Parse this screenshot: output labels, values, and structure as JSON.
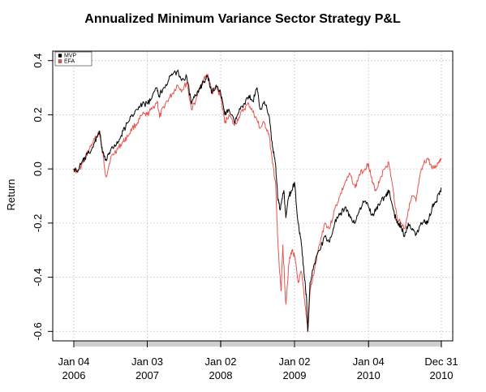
{
  "chart_data": {
    "type": "line",
    "title": "Annualized Minimum Variance Sector Strategy P&L",
    "xlabel": "",
    "ylabel": "Return",
    "ylim": [
      -0.6,
      0.4
    ],
    "xlim": [
      "2006-01-04",
      "2010-12-31"
    ],
    "y_ticks": [
      {
        "value": -0.6,
        "label": "-0.6"
      },
      {
        "value": -0.4,
        "label": "-0.4"
      },
      {
        "value": -0.2,
        "label": "-0.2"
      },
      {
        "value": 0.0,
        "label": "0.0"
      },
      {
        "value": 0.2,
        "label": "0.2"
      },
      {
        "value": 0.4,
        "label": "0.4"
      }
    ],
    "x_ticks": [
      {
        "date": "2006-01-04",
        "line1": "Jan 04",
        "line2": "2006"
      },
      {
        "date": "2007-01-03",
        "line1": "Jan 03",
        "line2": "2007"
      },
      {
        "date": "2008-01-02",
        "line1": "Jan 02",
        "line2": "2008"
      },
      {
        "date": "2009-01-02",
        "line1": "Jan 02",
        "line2": "2009"
      },
      {
        "date": "2010-01-04",
        "line1": "Jan 04",
        "line2": "2010"
      },
      {
        "date": "2010-12-31",
        "line1": "Dec 31",
        "line2": "2010"
      }
    ],
    "grid": true,
    "legend_position": "top-left",
    "series": [
      {
        "name": "MVP",
        "color": "#000000",
        "points": [
          [
            "2006-01-04",
            0.0
          ],
          [
            "2006-01-20",
            -0.01
          ],
          [
            "2006-02-10",
            0.02
          ],
          [
            "2006-03-01",
            0.04
          ],
          [
            "2006-03-20",
            0.06
          ],
          [
            "2006-04-10",
            0.08
          ],
          [
            "2006-04-28",
            0.12
          ],
          [
            "2006-05-12",
            0.14
          ],
          [
            "2006-05-26",
            0.06
          ],
          [
            "2006-06-14",
            0.03
          ],
          [
            "2006-07-05",
            0.07
          ],
          [
            "2006-07-25",
            0.09
          ],
          [
            "2006-08-15",
            0.1
          ],
          [
            "2006-09-05",
            0.14
          ],
          [
            "2006-09-28",
            0.17
          ],
          [
            "2006-10-20",
            0.2
          ],
          [
            "2006-11-15",
            0.22
          ],
          [
            "2006-12-10",
            0.24
          ],
          [
            "2007-01-03",
            0.24
          ],
          [
            "2007-01-25",
            0.26
          ],
          [
            "2007-02-20",
            0.3
          ],
          [
            "2007-03-02",
            0.27
          ],
          [
            "2007-03-25",
            0.3
          ],
          [
            "2007-04-20",
            0.33
          ],
          [
            "2007-05-10",
            0.35
          ],
          [
            "2007-06-01",
            0.36
          ],
          [
            "2007-06-25",
            0.33
          ],
          [
            "2007-07-18",
            0.34
          ],
          [
            "2007-08-10",
            0.24
          ],
          [
            "2007-08-30",
            0.27
          ],
          [
            "2007-09-20",
            0.3
          ],
          [
            "2007-10-10",
            0.32
          ],
          [
            "2007-10-30",
            0.34
          ],
          [
            "2007-11-20",
            0.28
          ],
          [
            "2007-12-10",
            0.31
          ],
          [
            "2008-01-02",
            0.28
          ],
          [
            "2008-01-22",
            0.2
          ],
          [
            "2008-02-12",
            0.22
          ],
          [
            "2008-03-10",
            0.17
          ],
          [
            "2008-04-01",
            0.21
          ],
          [
            "2008-04-25",
            0.24
          ],
          [
            "2008-05-20",
            0.27
          ],
          [
            "2008-06-10",
            0.25
          ],
          [
            "2008-06-30",
            0.3
          ],
          [
            "2008-07-15",
            0.22
          ],
          [
            "2008-08-05",
            0.25
          ],
          [
            "2008-08-28",
            0.2
          ],
          [
            "2008-09-15",
            0.08
          ],
          [
            "2008-09-30",
            0.02
          ],
          [
            "2008-10-10",
            -0.1
          ],
          [
            "2008-10-24",
            -0.15
          ],
          [
            "2008-11-10",
            -0.08
          ],
          [
            "2008-11-20",
            -0.18
          ],
          [
            "2008-12-05",
            -0.1
          ],
          [
            "2008-12-20",
            -0.08
          ],
          [
            "2009-01-02",
            -0.05
          ],
          [
            "2009-01-20",
            -0.2
          ],
          [
            "2009-02-05",
            -0.28
          ],
          [
            "2009-02-20",
            -0.4
          ],
          [
            "2009-03-03",
            -0.48
          ],
          [
            "2009-03-09",
            -0.6
          ],
          [
            "2009-03-20",
            -0.42
          ],
          [
            "2009-04-10",
            -0.35
          ],
          [
            "2009-05-05",
            -0.3
          ],
          [
            "2009-06-01",
            -0.25
          ],
          [
            "2009-06-25",
            -0.27
          ],
          [
            "2009-07-20",
            -0.2
          ],
          [
            "2009-08-15",
            -0.17
          ],
          [
            "2009-09-10",
            -0.14
          ],
          [
            "2009-10-05",
            -0.18
          ],
          [
            "2009-10-30",
            -0.2
          ],
          [
            "2009-11-20",
            -0.15
          ],
          [
            "2009-12-15",
            -0.12
          ],
          [
            "2010-01-04",
            -0.14
          ],
          [
            "2010-01-22",
            -0.17
          ],
          [
            "2010-02-10",
            -0.15
          ],
          [
            "2010-03-05",
            -0.12
          ],
          [
            "2010-03-30",
            -0.1
          ],
          [
            "2010-04-15",
            -0.08
          ],
          [
            "2010-05-06",
            -0.15
          ],
          [
            "2010-05-25",
            -0.2
          ],
          [
            "2010-06-15",
            -0.21
          ],
          [
            "2010-07-02",
            -0.25
          ],
          [
            "2010-07-20",
            -0.2
          ],
          [
            "2010-08-10",
            -0.22
          ],
          [
            "2010-08-27",
            -0.24
          ],
          [
            "2010-09-15",
            -0.21
          ],
          [
            "2010-10-05",
            -0.19
          ],
          [
            "2010-10-25",
            -0.2
          ],
          [
            "2010-11-15",
            -0.14
          ],
          [
            "2010-12-05",
            -0.12
          ],
          [
            "2010-12-20",
            -0.09
          ],
          [
            "2010-12-31",
            -0.07
          ]
        ]
      },
      {
        "name": "EFA",
        "color": "#e8544e",
        "points": [
          [
            "2006-01-04",
            0.0
          ],
          [
            "2006-01-20",
            -0.01
          ],
          [
            "2006-02-10",
            0.01
          ],
          [
            "2006-03-01",
            0.04
          ],
          [
            "2006-03-20",
            0.07
          ],
          [
            "2006-04-10",
            0.1
          ],
          [
            "2006-04-28",
            0.12
          ],
          [
            "2006-05-10",
            0.14
          ],
          [
            "2006-05-22",
            0.08
          ],
          [
            "2006-06-13",
            -0.03
          ],
          [
            "2006-07-05",
            0.04
          ],
          [
            "2006-07-25",
            0.06
          ],
          [
            "2006-08-15",
            0.08
          ],
          [
            "2006-09-05",
            0.1
          ],
          [
            "2006-09-28",
            0.12
          ],
          [
            "2006-10-20",
            0.15
          ],
          [
            "2006-11-15",
            0.17
          ],
          [
            "2006-12-10",
            0.2
          ],
          [
            "2007-01-03",
            0.2
          ],
          [
            "2007-01-25",
            0.22
          ],
          [
            "2007-02-22",
            0.25
          ],
          [
            "2007-03-05",
            0.19
          ],
          [
            "2007-03-25",
            0.23
          ],
          [
            "2007-04-20",
            0.26
          ],
          [
            "2007-05-10",
            0.28
          ],
          [
            "2007-06-01",
            0.31
          ],
          [
            "2007-06-25",
            0.29
          ],
          [
            "2007-07-18",
            0.32
          ],
          [
            "2007-08-10",
            0.22
          ],
          [
            "2007-08-30",
            0.25
          ],
          [
            "2007-09-20",
            0.3
          ],
          [
            "2007-10-10",
            0.33
          ],
          [
            "2007-10-30",
            0.35
          ],
          [
            "2007-11-20",
            0.28
          ],
          [
            "2007-12-10",
            0.3
          ],
          [
            "2008-01-02",
            0.27
          ],
          [
            "2008-01-22",
            0.17
          ],
          [
            "2008-02-12",
            0.2
          ],
          [
            "2008-03-10",
            0.16
          ],
          [
            "2008-04-01",
            0.19
          ],
          [
            "2008-04-25",
            0.22
          ],
          [
            "2008-05-20",
            0.24
          ],
          [
            "2008-06-10",
            0.21
          ],
          [
            "2008-06-30",
            0.18
          ],
          [
            "2008-07-15",
            0.15
          ],
          [
            "2008-08-05",
            0.17
          ],
          [
            "2008-08-28",
            0.13
          ],
          [
            "2008-09-15",
            0.02
          ],
          [
            "2008-09-30",
            -0.05
          ],
          [
            "2008-10-10",
            -0.25
          ],
          [
            "2008-10-20",
            -0.38
          ],
          [
            "2008-10-28",
            -0.45
          ],
          [
            "2008-11-05",
            -0.28
          ],
          [
            "2008-11-20",
            -0.5
          ],
          [
            "2008-12-05",
            -0.35
          ],
          [
            "2008-12-20",
            -0.3
          ],
          [
            "2009-01-02",
            -0.32
          ],
          [
            "2009-01-20",
            -0.42
          ],
          [
            "2009-02-05",
            -0.38
          ],
          [
            "2009-02-20",
            -0.48
          ],
          [
            "2009-03-03",
            -0.55
          ],
          [
            "2009-03-09",
            -0.6
          ],
          [
            "2009-03-20",
            -0.45
          ],
          [
            "2009-04-10",
            -0.38
          ],
          [
            "2009-05-05",
            -0.28
          ],
          [
            "2009-06-01",
            -0.2
          ],
          [
            "2009-06-25",
            -0.22
          ],
          [
            "2009-07-20",
            -0.15
          ],
          [
            "2009-08-15",
            -0.1
          ],
          [
            "2009-09-10",
            -0.05
          ],
          [
            "2009-10-05",
            -0.02
          ],
          [
            "2009-10-30",
            -0.07
          ],
          [
            "2009-11-20",
            -0.02
          ],
          [
            "2009-12-15",
            0.0
          ],
          [
            "2010-01-04",
            0.02
          ],
          [
            "2010-01-22",
            -0.05
          ],
          [
            "2010-02-10",
            -0.08
          ],
          [
            "2010-03-05",
            -0.03
          ],
          [
            "2010-03-30",
            0.01
          ],
          [
            "2010-04-15",
            0.02
          ],
          [
            "2010-05-06",
            -0.08
          ],
          [
            "2010-05-25",
            -0.18
          ],
          [
            "2010-06-15",
            -0.2
          ],
          [
            "2010-07-02",
            -0.22
          ],
          [
            "2010-07-20",
            -0.15
          ],
          [
            "2010-08-10",
            -0.1
          ],
          [
            "2010-08-27",
            -0.12
          ],
          [
            "2010-09-15",
            -0.03
          ],
          [
            "2010-10-05",
            0.02
          ],
          [
            "2010-10-25",
            0.04
          ],
          [
            "2010-11-15",
            0.0
          ],
          [
            "2010-12-05",
            0.01
          ],
          [
            "2010-12-20",
            0.03
          ],
          [
            "2010-12-31",
            0.04
          ]
        ]
      }
    ]
  }
}
